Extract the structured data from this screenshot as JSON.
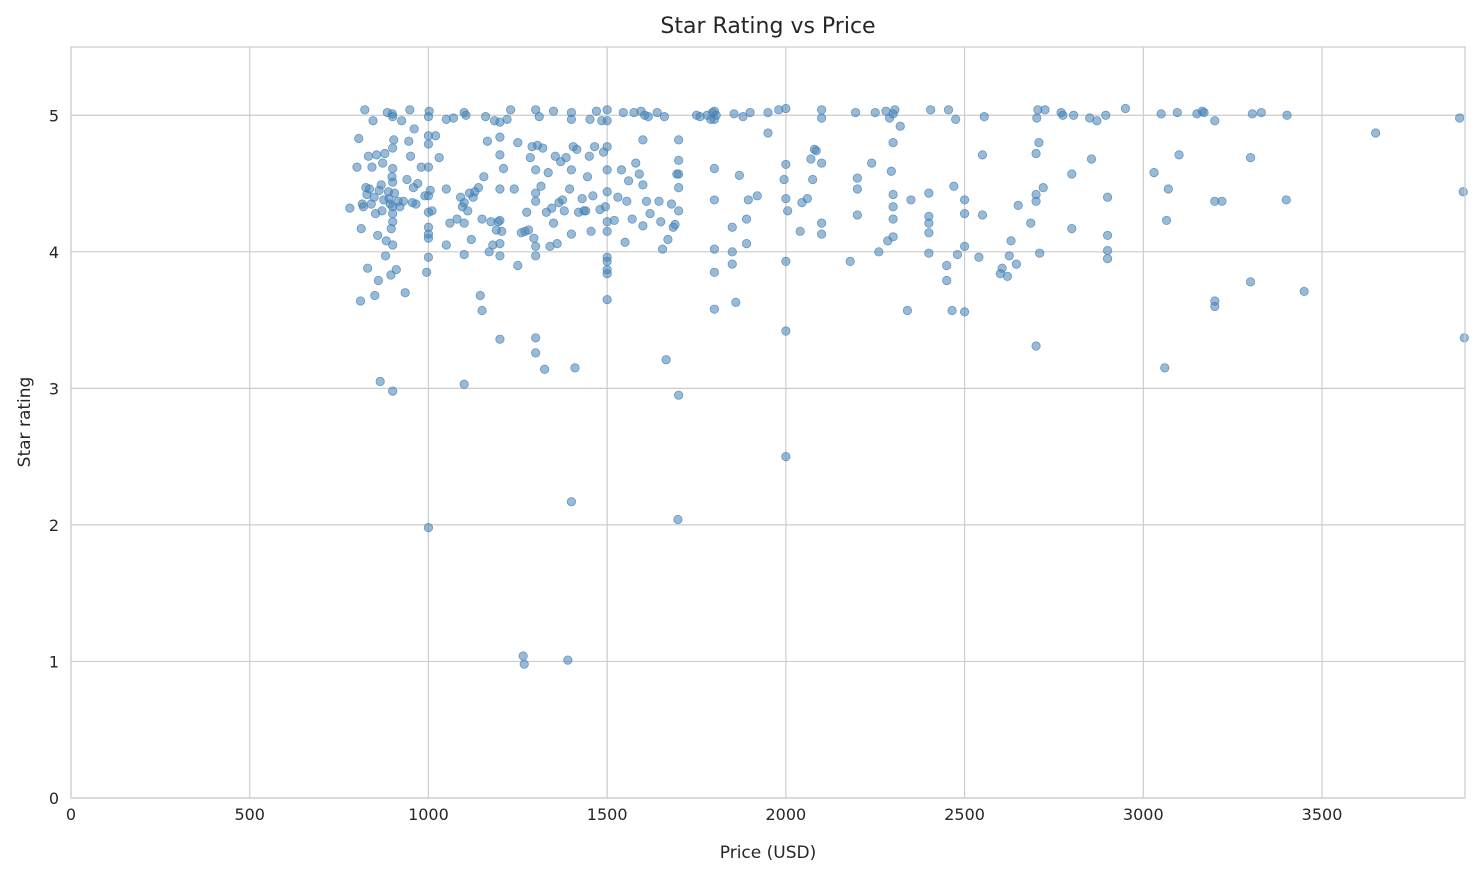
{
  "chart_data": {
    "type": "scatter",
    "title": "Star Rating vs Price",
    "xlabel": "Price (USD)",
    "ylabel": "Star rating",
    "xlim": [
      0,
      3900
    ],
    "ylim": [
      0,
      5.5
    ],
    "xticks": [
      0,
      500,
      1000,
      1500,
      2000,
      2500,
      3000,
      3500
    ],
    "yticks": [
      0,
      1,
      2,
      3,
      4,
      5
    ],
    "grid": true,
    "point_color": "#4682b4",
    "points": [
      [
        780,
        4.32
      ],
      [
        800,
        4.62
      ],
      [
        805,
        4.83
      ],
      [
        810,
        3.64
      ],
      [
        812,
        4.17
      ],
      [
        815,
        4.35
      ],
      [
        818,
        4.33
      ],
      [
        822,
        5.04
      ],
      [
        825,
        4.47
      ],
      [
        828,
        4.42
      ],
      [
        830,
        3.88
      ],
      [
        832,
        4.7
      ],
      [
        835,
        4.46
      ],
      [
        840,
        4.35
      ],
      [
        842,
        4.62
      ],
      [
        845,
        4.96
      ],
      [
        848,
        4.4
      ],
      [
        850,
        3.68
      ],
      [
        852,
        4.28
      ],
      [
        855,
        4.71
      ],
      [
        858,
        4.12
      ],
      [
        860,
        3.79
      ],
      [
        862,
        4.45
      ],
      [
        865,
        3.05
      ],
      [
        868,
        4.49
      ],
      [
        870,
        4.3
      ],
      [
        872,
        4.65
      ],
      [
        875,
        4.38
      ],
      [
        878,
        4.72
      ],
      [
        880,
        3.97
      ],
      [
        882,
        4.08
      ],
      [
        885,
        5.02
      ],
      [
        888,
        4.44
      ],
      [
        890,
        4.39
      ],
      [
        893,
        4.35
      ],
      [
        895,
        3.83
      ],
      [
        896,
        4.17
      ],
      [
        898,
        4.55
      ],
      [
        899,
        5.01
      ],
      [
        900,
        2.98
      ],
      [
        900,
        4.05
      ],
      [
        900,
        4.22
      ],
      [
        900,
        4.28
      ],
      [
        900,
        4.33
      ],
      [
        900,
        4.51
      ],
      [
        900,
        4.61
      ],
      [
        900,
        4.76
      ],
      [
        900,
        4.99
      ],
      [
        903,
        4.82
      ],
      [
        905,
        4.43
      ],
      [
        910,
        3.87
      ],
      [
        915,
        4.37
      ],
      [
        920,
        4.33
      ],
      [
        925,
        4.96
      ],
      [
        930,
        4.37
      ],
      [
        935,
        3.7
      ],
      [
        940,
        4.53
      ],
      [
        945,
        4.81
      ],
      [
        948,
        5.04
      ],
      [
        950,
        4.7
      ],
      [
        955,
        4.36
      ],
      [
        958,
        4.47
      ],
      [
        960,
        4.9
      ],
      [
        965,
        4.35
      ],
      [
        970,
        4.5
      ],
      [
        980,
        4.62
      ],
      [
        990,
        4.41
      ],
      [
        995,
        3.85
      ],
      [
        1000,
        1.98
      ],
      [
        1000,
        3.96
      ],
      [
        1000,
        4.1
      ],
      [
        1000,
        4.13
      ],
      [
        1000,
        4.18
      ],
      [
        1000,
        4.29
      ],
      [
        1000,
        4.41
      ],
      [
        1000,
        4.62
      ],
      [
        1000,
        4.79
      ],
      [
        1000,
        4.85
      ],
      [
        1000,
        4.99
      ],
      [
        1002,
        5.03
      ],
      [
        1005,
        4.45
      ],
      [
        1010,
        4.3
      ],
      [
        1020,
        4.85
      ],
      [
        1030,
        4.69
      ],
      [
        1050,
        4.46
      ],
      [
        1050,
        4.97
      ],
      [
        1050,
        4.05
      ],
      [
        1060,
        4.21
      ],
      [
        1070,
        4.98
      ],
      [
        1080,
        4.24
      ],
      [
        1090,
        4.4
      ],
      [
        1095,
        4.33
      ],
      [
        1100,
        3.03
      ],
      [
        1100,
        4.21
      ],
      [
        1100,
        4.36
      ],
      [
        1100,
        3.98
      ],
      [
        1100,
        5.02
      ],
      [
        1105,
        5.0
      ],
      [
        1110,
        4.3
      ],
      [
        1115,
        4.43
      ],
      [
        1120,
        4.09
      ],
      [
        1125,
        4.4
      ],
      [
        1130,
        4.44
      ],
      [
        1140,
        4.47
      ],
      [
        1145,
        3.68
      ],
      [
        1150,
        3.57
      ],
      [
        1150,
        4.24
      ],
      [
        1155,
        4.55
      ],
      [
        1160,
        4.99
      ],
      [
        1165,
        4.81
      ],
      [
        1170,
        4.0
      ],
      [
        1175,
        4.22
      ],
      [
        1180,
        4.05
      ],
      [
        1185,
        4.96
      ],
      [
        1190,
        4.16
      ],
      [
        1195,
        4.22
      ],
      [
        1200,
        3.36
      ],
      [
        1200,
        3.97
      ],
      [
        1200,
        4.06
      ],
      [
        1200,
        4.23
      ],
      [
        1200,
        4.46
      ],
      [
        1200,
        4.71
      ],
      [
        1200,
        4.84
      ],
      [
        1200,
        4.95
      ],
      [
        1205,
        4.15
      ],
      [
        1210,
        4.61
      ],
      [
        1220,
        4.97
      ],
      [
        1230,
        5.04
      ],
      [
        1240,
        4.46
      ],
      [
        1250,
        3.9
      ],
      [
        1250,
        4.8
      ],
      [
        1260,
        4.14
      ],
      [
        1265,
        1.04
      ],
      [
        1268,
        0.98
      ],
      [
        1270,
        4.15
      ],
      [
        1275,
        4.29
      ],
      [
        1280,
        4.16
      ],
      [
        1285,
        4.69
      ],
      [
        1290,
        4.77
      ],
      [
        1295,
        4.1
      ],
      [
        1300,
        3.26
      ],
      [
        1300,
        3.37
      ],
      [
        1300,
        3.97
      ],
      [
        1300,
        4.04
      ],
      [
        1300,
        4.37
      ],
      [
        1300,
        4.43
      ],
      [
        1300,
        4.6
      ],
      [
        1300,
        5.04
      ],
      [
        1305,
        4.78
      ],
      [
        1310,
        4.99
      ],
      [
        1315,
        4.48
      ],
      [
        1320,
        4.76
      ],
      [
        1325,
        3.14
      ],
      [
        1330,
        4.29
      ],
      [
        1335,
        4.58
      ],
      [
        1340,
        4.04
      ],
      [
        1345,
        4.32
      ],
      [
        1350,
        4.21
      ],
      [
        1350,
        5.03
      ],
      [
        1355,
        4.7
      ],
      [
        1360,
        4.06
      ],
      [
        1365,
        4.36
      ],
      [
        1370,
        4.66
      ],
      [
        1375,
        4.38
      ],
      [
        1380,
        4.3
      ],
      [
        1385,
        4.69
      ],
      [
        1390,
        1.01
      ],
      [
        1395,
        4.46
      ],
      [
        1400,
        2.17
      ],
      [
        1400,
        4.13
      ],
      [
        1400,
        4.6
      ],
      [
        1400,
        4.97
      ],
      [
        1400,
        5.02
      ],
      [
        1405,
        4.77
      ],
      [
        1410,
        3.15
      ],
      [
        1415,
        4.75
      ],
      [
        1420,
        4.29
      ],
      [
        1430,
        4.39
      ],
      [
        1435,
        4.3
      ],
      [
        1440,
        4.3
      ],
      [
        1445,
        4.55
      ],
      [
        1450,
        4.7
      ],
      [
        1452,
        4.97
      ],
      [
        1455,
        4.15
      ],
      [
        1460,
        4.41
      ],
      [
        1465,
        4.77
      ],
      [
        1470,
        5.03
      ],
      [
        1480,
        4.31
      ],
      [
        1485,
        4.96
      ],
      [
        1490,
        4.73
      ],
      [
        1495,
        4.33
      ],
      [
        1500,
        3.65
      ],
      [
        1500,
        3.84
      ],
      [
        1500,
        3.87
      ],
      [
        1500,
        3.93
      ],
      [
        1500,
        3.96
      ],
      [
        1500,
        4.15
      ],
      [
        1500,
        4.22
      ],
      [
        1500,
        4.44
      ],
      [
        1500,
        4.6
      ],
      [
        1500,
        4.77
      ],
      [
        1500,
        4.96
      ],
      [
        1500,
        5.04
      ],
      [
        1520,
        4.23
      ],
      [
        1530,
        4.4
      ],
      [
        1540,
        4.6
      ],
      [
        1545,
        5.02
      ],
      [
        1550,
        4.07
      ],
      [
        1555,
        4.37
      ],
      [
        1560,
        4.52
      ],
      [
        1570,
        4.24
      ],
      [
        1575,
        5.02
      ],
      [
        1580,
        4.65
      ],
      [
        1590,
        4.57
      ],
      [
        1595,
        5.03
      ],
      [
        1600,
        4.19
      ],
      [
        1600,
        4.49
      ],
      [
        1600,
        4.82
      ],
      [
        1605,
        5.0
      ],
      [
        1610,
        4.37
      ],
      [
        1615,
        4.99
      ],
      [
        1620,
        4.28
      ],
      [
        1640,
        5.02
      ],
      [
        1645,
        4.37
      ],
      [
        1650,
        4.22
      ],
      [
        1655,
        4.02
      ],
      [
        1660,
        4.99
      ],
      [
        1665,
        3.21
      ],
      [
        1670,
        4.09
      ],
      [
        1680,
        4.35
      ],
      [
        1685,
        4.18
      ],
      [
        1690,
        4.2
      ],
      [
        1695,
        4.57
      ],
      [
        1698,
        2.04
      ],
      [
        1700,
        2.95
      ],
      [
        1700,
        4.3
      ],
      [
        1700,
        4.47
      ],
      [
        1700,
        4.57
      ],
      [
        1700,
        4.67
      ],
      [
        1700,
        4.82
      ],
      [
        1750,
        5.0
      ],
      [
        1760,
        4.99
      ],
      [
        1780,
        5.0
      ],
      [
        1790,
        4.97
      ],
      [
        1795,
        5.02
      ],
      [
        1800,
        3.58
      ],
      [
        1800,
        3.85
      ],
      [
        1800,
        4.02
      ],
      [
        1800,
        4.38
      ],
      [
        1800,
        4.61
      ],
      [
        1800,
        4.97
      ],
      [
        1800,
        5.03
      ],
      [
        1805,
        5.0
      ],
      [
        1850,
        3.91
      ],
      [
        1850,
        4.0
      ],
      [
        1850,
        4.18
      ],
      [
        1855,
        5.01
      ],
      [
        1860,
        3.63
      ],
      [
        1870,
        4.56
      ],
      [
        1880,
        4.99
      ],
      [
        1890,
        4.06
      ],
      [
        1890,
        4.24
      ],
      [
        1895,
        4.38
      ],
      [
        1900,
        5.02
      ],
      [
        1920,
        4.41
      ],
      [
        1950,
        4.87
      ],
      [
        1950,
        5.02
      ],
      [
        1980,
        5.04
      ],
      [
        1995,
        4.53
      ],
      [
        2000,
        2.5
      ],
      [
        2000,
        3.93
      ],
      [
        2000,
        3.42
      ],
      [
        2000,
        4.39
      ],
      [
        2000,
        4.64
      ],
      [
        2000,
        5.05
      ],
      [
        2005,
        4.3
      ],
      [
        2040,
        4.15
      ],
      [
        2045,
        4.36
      ],
      [
        2060,
        4.39
      ],
      [
        2070,
        4.68
      ],
      [
        2075,
        4.53
      ],
      [
        2080,
        4.75
      ],
      [
        2085,
        4.74
      ],
      [
        2100,
        4.13
      ],
      [
        2100,
        4.21
      ],
      [
        2100,
        4.65
      ],
      [
        2100,
        4.98
      ],
      [
        2100,
        5.04
      ],
      [
        2180,
        3.93
      ],
      [
        2195,
        5.02
      ],
      [
        2200,
        4.27
      ],
      [
        2200,
        4.46
      ],
      [
        2200,
        4.54
      ],
      [
        2240,
        4.65
      ],
      [
        2250,
        5.02
      ],
      [
        2260,
        4.0
      ],
      [
        2280,
        5.03
      ],
      [
        2285,
        4.08
      ],
      [
        2290,
        4.98
      ],
      [
        2295,
        4.59
      ],
      [
        2300,
        4.11
      ],
      [
        2300,
        4.24
      ],
      [
        2300,
        4.33
      ],
      [
        2300,
        4.42
      ],
      [
        2300,
        4.8
      ],
      [
        2300,
        5.01
      ],
      [
        2305,
        5.04
      ],
      [
        2320,
        4.92
      ],
      [
        2340,
        3.57
      ],
      [
        2350,
        4.38
      ],
      [
        2400,
        3.99
      ],
      [
        2400,
        4.14
      ],
      [
        2400,
        4.21
      ],
      [
        2400,
        4.26
      ],
      [
        2400,
        4.43
      ],
      [
        2405,
        5.04
      ],
      [
        2450,
        3.79
      ],
      [
        2450,
        3.9
      ],
      [
        2455,
        5.04
      ],
      [
        2465,
        3.57
      ],
      [
        2470,
        4.48
      ],
      [
        2475,
        4.97
      ],
      [
        2480,
        3.98
      ],
      [
        2500,
        3.56
      ],
      [
        2500,
        4.04
      ],
      [
        2500,
        4.28
      ],
      [
        2500,
        4.38
      ],
      [
        2540,
        3.96
      ],
      [
        2550,
        4.27
      ],
      [
        2550,
        4.71
      ],
      [
        2555,
        4.99
      ],
      [
        2600,
        3.84
      ],
      [
        2605,
        3.88
      ],
      [
        2620,
        3.82
      ],
      [
        2625,
        3.97
      ],
      [
        2630,
        4.08
      ],
      [
        2645,
        3.91
      ],
      [
        2650,
        4.34
      ],
      [
        2685,
        4.21
      ],
      [
        2700,
        3.31
      ],
      [
        2700,
        4.37
      ],
      [
        2700,
        4.42
      ],
      [
        2700,
        4.72
      ],
      [
        2702,
        4.98
      ],
      [
        2705,
        5.04
      ],
      [
        2708,
        4.8
      ],
      [
        2710,
        3.99
      ],
      [
        2720,
        4.47
      ],
      [
        2725,
        5.04
      ],
      [
        2770,
        5.02
      ],
      [
        2775,
        5.0
      ],
      [
        2800,
        4.17
      ],
      [
        2800,
        4.57
      ],
      [
        2805,
        5.0
      ],
      [
        2850,
        4.98
      ],
      [
        2855,
        4.68
      ],
      [
        2870,
        4.96
      ],
      [
        2895,
        5.0
      ],
      [
        2900,
        3.95
      ],
      [
        2900,
        4.01
      ],
      [
        2900,
        4.12
      ],
      [
        2900,
        4.4
      ],
      [
        2950,
        5.05
      ],
      [
        3030,
        4.58
      ],
      [
        3050,
        5.01
      ],
      [
        3060,
        3.15
      ],
      [
        3065,
        4.23
      ],
      [
        3070,
        4.46
      ],
      [
        3095,
        5.02
      ],
      [
        3100,
        4.71
      ],
      [
        3150,
        5.01
      ],
      [
        3165,
        5.03
      ],
      [
        3170,
        5.02
      ],
      [
        3200,
        3.6
      ],
      [
        3200,
        3.64
      ],
      [
        3200,
        4.37
      ],
      [
        3200,
        4.96
      ],
      [
        3220,
        4.37
      ],
      [
        3300,
        3.78
      ],
      [
        3300,
        4.69
      ],
      [
        3305,
        5.01
      ],
      [
        3330,
        5.02
      ],
      [
        3400,
        4.38
      ],
      [
        3402,
        5.0
      ],
      [
        3450,
        3.71
      ],
      [
        3650,
        4.87
      ],
      [
        3885,
        4.98
      ],
      [
        3895,
        4.44
      ],
      [
        3898,
        3.37
      ]
    ]
  }
}
